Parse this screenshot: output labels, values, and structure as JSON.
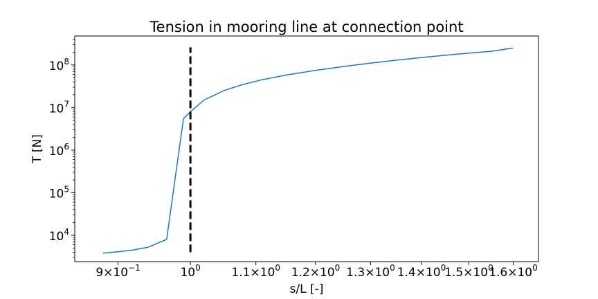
{
  "chart_data": {
    "type": "line",
    "title": "Tension in mooring line at connection point",
    "xlabel": "s/L [-]",
    "ylabel": "T [N]",
    "xscale": "log",
    "yscale": "log",
    "xlim": [
      0.845,
      1.66
    ],
    "ylim": [
      2400,
      480000000
    ],
    "grid": false,
    "series": [
      {
        "color": "#1f77b4",
        "x": [
          0.88,
          0.9,
          0.92,
          0.94,
          0.966,
          0.99,
          1.0,
          1.02,
          1.05,
          1.08,
          1.11,
          1.15,
          1.2,
          1.25,
          1.3,
          1.35,
          1.4,
          1.45,
          1.5,
          1.55,
          1.6
        ],
        "y": [
          3800,
          4100,
          4500,
          5200,
          8000,
          5500000,
          8000000,
          15000000,
          25000000,
          35000000,
          45000000,
          58000000,
          75000000,
          92000000,
          110000000,
          130000000,
          150000000,
          170000000,
          190000000,
          210000000,
          250000000
        ]
      }
    ],
    "vline": {
      "x": 1.0,
      "y_from": 4000,
      "y_to": 260000000,
      "color": "#000000",
      "style": "dashed"
    },
    "xticks": [
      {
        "value": 0.9,
        "mantissa": "9",
        "exp": "−1"
      },
      {
        "value": 1.0,
        "mantissa": "",
        "exp": "0"
      },
      {
        "value": 1.1,
        "mantissa": "1.1",
        "exp": "0"
      },
      {
        "value": 1.2,
        "mantissa": "1.2",
        "exp": "0"
      },
      {
        "value": 1.3,
        "mantissa": "1.3",
        "exp": "0"
      },
      {
        "value": 1.4,
        "mantissa": "1.4",
        "exp": "0"
      },
      {
        "value": 1.5,
        "mantissa": "1.5",
        "exp": "0"
      },
      {
        "value": 1.6,
        "mantissa": "1.6",
        "exp": "0"
      }
    ],
    "yticks": [
      {
        "value": 10000,
        "exp": "4"
      },
      {
        "value": 100000,
        "exp": "5"
      },
      {
        "value": 1000000,
        "exp": "6"
      },
      {
        "value": 10000000,
        "exp": "7"
      },
      {
        "value": 100000000,
        "exp": "8"
      }
    ]
  }
}
